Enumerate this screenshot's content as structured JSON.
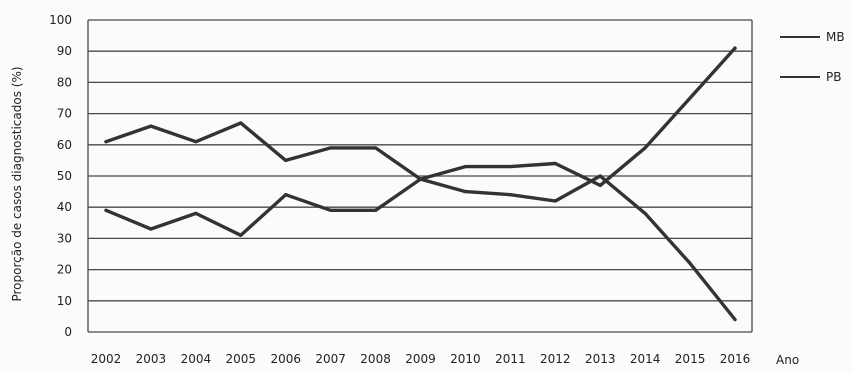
{
  "chart_data": {
    "type": "line",
    "title": "",
    "xlabel": "Ano",
    "ylabel": "Proporção de casos diagnosticados (%)",
    "x": [
      "2002",
      "2003",
      "2004",
      "2005",
      "2006",
      "2007",
      "2008",
      "2009",
      "2010",
      "2011",
      "2012",
      "2013",
      "2014",
      "2015",
      "2016"
    ],
    "yticks": [
      "0",
      "10",
      "20",
      "30",
      "40",
      "50",
      "60",
      "70",
      "80",
      "90",
      "100"
    ],
    "ylim": [
      0,
      100
    ],
    "grid": true,
    "legend_position": "right",
    "series": [
      {
        "name": "MB",
        "values": [
          39,
          33,
          38,
          31,
          44,
          39,
          39,
          49,
          53,
          53,
          54,
          47,
          59,
          75,
          91
        ]
      },
      {
        "name": "PB",
        "values": [
          61,
          66,
          61,
          67,
          55,
          59,
          59,
          49,
          45,
          44,
          42,
          50,
          38,
          22,
          4
        ]
      }
    ],
    "line_color": "#333333",
    "grid_color": "#4a4a4a"
  }
}
